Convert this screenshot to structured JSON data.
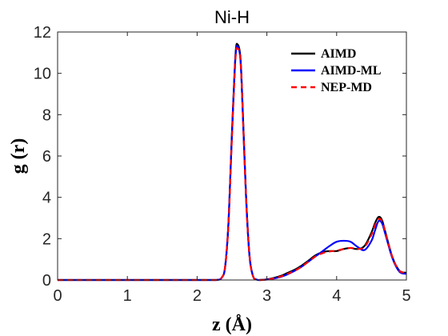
{
  "chart_data": {
    "type": "line",
    "title": "Ni-H",
    "xlabel": "z (Å)",
    "ylabel": "g (r)",
    "xlim": [
      0,
      5
    ],
    "ylim": [
      0,
      12
    ],
    "xticks": [
      0,
      1,
      2,
      3,
      4,
      5
    ],
    "yticks": [
      0,
      2,
      4,
      6,
      8,
      10,
      12
    ],
    "grid": false,
    "legend_position": "top-right",
    "x": [
      0,
      0.25,
      0.5,
      0.75,
      1,
      1.25,
      1.5,
      1.75,
      2,
      2.2,
      2.3,
      2.35,
      2.4,
      2.45,
      2.5,
      2.55,
      2.58,
      2.62,
      2.65,
      2.7,
      2.75,
      2.8,
      2.85,
      2.9,
      3,
      3.1,
      3.2,
      3.3,
      3.4,
      3.5,
      3.6,
      3.7,
      3.8,
      3.9,
      4,
      4.1,
      4.2,
      4.3,
      4.4,
      4.5,
      4.55,
      4.6,
      4.65,
      4.7,
      4.8,
      4.9,
      5
    ],
    "series": [
      {
        "name": "AIMD",
        "color": "#000000",
        "dash": "solid",
        "values": [
          0,
          0,
          0,
          0,
          0,
          0,
          0,
          0,
          0,
          0,
          0.01,
          0.1,
          0.6,
          2.8,
          7.2,
          10.9,
          11.4,
          10.8,
          8.6,
          4.2,
          1.2,
          0.2,
          0.02,
          0,
          0.03,
          0.1,
          0.2,
          0.35,
          0.5,
          0.7,
          0.95,
          1.2,
          1.35,
          1.4,
          1.4,
          1.5,
          1.55,
          1.5,
          1.65,
          2.3,
          2.75,
          3.05,
          2.9,
          2.3,
          1.1,
          0.45,
          0.35
        ]
      },
      {
        "name": "AIMD-ML",
        "color": "#0000ff",
        "dash": "solid",
        "values": [
          0,
          0,
          0,
          0,
          0,
          0,
          0,
          0,
          0,
          0,
          0.01,
          0.1,
          0.6,
          2.8,
          7.1,
          10.8,
          11.3,
          10.7,
          8.5,
          4.1,
          1.2,
          0.2,
          0.02,
          0,
          0.02,
          0.07,
          0.15,
          0.28,
          0.45,
          0.65,
          0.9,
          1.15,
          1.4,
          1.65,
          1.85,
          1.9,
          1.85,
          1.6,
          1.45,
          1.9,
          2.4,
          2.85,
          2.75,
          2.2,
          1.05,
          0.4,
          0.3
        ]
      },
      {
        "name": "NEP-MD",
        "color": "#ff0000",
        "dash": "dashed",
        "values": [
          0,
          0,
          0,
          0,
          0,
          0,
          0,
          0,
          0,
          0,
          0.01,
          0.1,
          0.6,
          2.7,
          7.0,
          10.7,
          11.2,
          10.7,
          8.5,
          4.1,
          1.2,
          0.2,
          0.02,
          0,
          0.02,
          0.08,
          0.17,
          0.3,
          0.45,
          0.65,
          0.9,
          1.15,
          1.3,
          1.38,
          1.42,
          1.5,
          1.55,
          1.5,
          1.6,
          2.2,
          2.65,
          2.95,
          2.85,
          2.3,
          1.1,
          0.45,
          0.35
        ]
      }
    ]
  }
}
